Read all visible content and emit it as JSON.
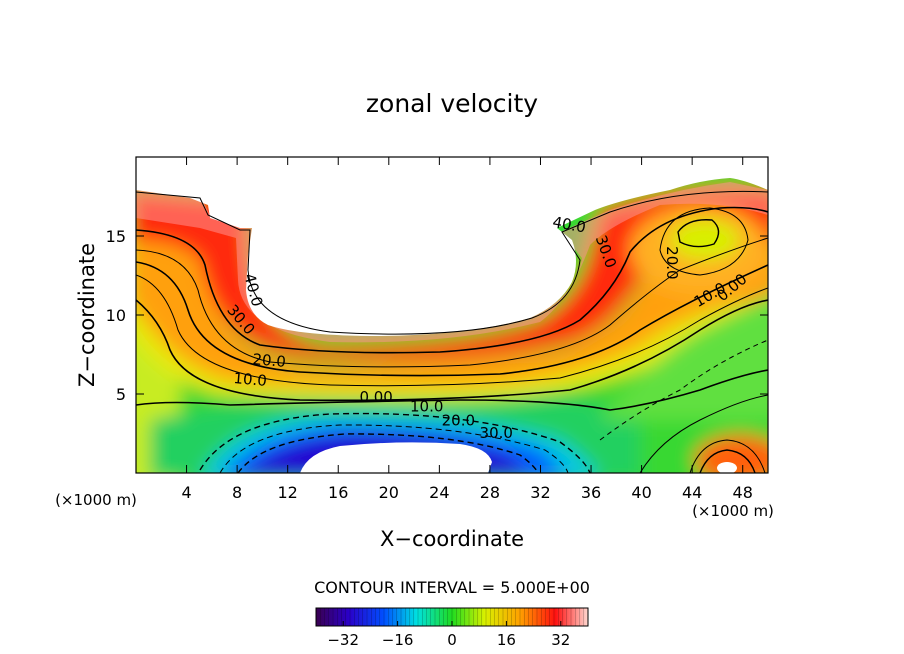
{
  "chart_data": {
    "type": "heatmap",
    "title": "zonal velocity",
    "xlabel": "X−coordinate",
    "ylabel": "Z−coordinate",
    "x_unit_left": "(×1000 m)",
    "x_unit_right": "(×1000 m)",
    "xlim": [
      0,
      50
    ],
    "ylim": [
      0,
      20
    ],
    "x_ticks": [
      4,
      8,
      12,
      16,
      20,
      24,
      28,
      32,
      36,
      40,
      44,
      48
    ],
    "y_ticks": [
      5,
      10,
      15
    ],
    "contour_interval_label": "CONTOUR INTERVAL = 5.000E+00",
    "colorbar": {
      "range": [
        -40,
        40
      ],
      "ticks": [
        -32,
        -16,
        0,
        16,
        32
      ],
      "tick_labels": [
        "−32",
        "−16",
        "0",
        "16",
        "32"
      ]
    },
    "contour_labels": [
      {
        "text": "40.0",
        "x": 8.9,
        "z": 11.5,
        "rot": 75
      },
      {
        "text": "30.0",
        "x": 8.0,
        "z": 9.5,
        "rot": 50
      },
      {
        "text": "20.0",
        "x": 10.5,
        "z": 6.8,
        "rot": 5
      },
      {
        "text": "10.0",
        "x": 9.0,
        "z": 5.6,
        "rot": 5
      },
      {
        "text": "0.00",
        "x": 19.0,
        "z": 4.5,
        "rot": 0
      },
      {
        "text": "10.0",
        "x": 23.0,
        "z": 3.9,
        "rot": 0
      },
      {
        "text": "20.0",
        "x": 25.5,
        "z": 3.0,
        "rot": 0
      },
      {
        "text": "30.0",
        "x": 28.5,
        "z": 2.2,
        "rot": 0
      },
      {
        "text": "40.0",
        "x": 34.2,
        "z": 15.4,
        "rot": 10
      },
      {
        "text": "30.0",
        "x": 36.8,
        "z": 13.9,
        "rot": 70
      },
      {
        "text": "20.0",
        "x": 42.0,
        "z": 13.3,
        "rot": 90
      },
      {
        "text": "10.0",
        "x": 45.6,
        "z": 11.0,
        "rot": -30
      },
      {
        "text": "0.00",
        "x": 47.4,
        "z": 11.5,
        "rot": -40
      }
    ]
  }
}
